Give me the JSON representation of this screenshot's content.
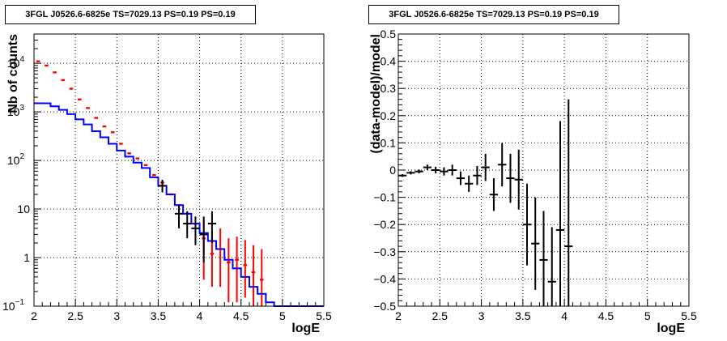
{
  "colors": {
    "data": "#ff0000",
    "model": "#0000ff",
    "residual": "#000000",
    "frame": "#000000",
    "grid": "#000000"
  },
  "chart_data": [
    {
      "type": "line",
      "title": "3FGL J0526.6-6825e TS=7029.13 PS=0.19 PS=0.19",
      "xlabel": "logE",
      "ylabel": "Nb of counts",
      "xlim": [
        2,
        5.5
      ],
      "ylim": [
        0.1,
        40000
      ],
      "yscale": "log",
      "grid": true,
      "xticks": [
        "2",
        "2.5",
        "3",
        "3.5",
        "4",
        "4.5",
        "5",
        "5.5"
      ],
      "yticks": [
        {
          "value": 0.1,
          "base": "10",
          "exp": "−1"
        },
        {
          "value": 1,
          "base": "1",
          "exp": ""
        },
        {
          "value": 10,
          "base": "10",
          "exp": ""
        },
        {
          "value": 100,
          "base": "10",
          "exp": "2"
        },
        {
          "value": 1000,
          "base": "10",
          "exp": "3"
        },
        {
          "value": 10000,
          "base": "10",
          "exp": "4"
        }
      ],
      "bin_width": 0.1,
      "x": [
        2.05,
        2.15,
        2.25,
        2.35,
        2.45,
        2.55,
        2.65,
        2.75,
        2.85,
        2.95,
        3.05,
        3.15,
        3.25,
        3.35,
        3.45,
        3.55,
        3.65,
        3.75,
        3.85,
        3.95,
        4.05,
        4.15,
        4.25,
        4.35,
        4.45,
        4.55,
        4.65,
        4.75,
        4.85,
        4.95,
        5.05,
        5.15,
        5.25,
        5.35,
        5.45
      ],
      "series": [
        {
          "kind": "data",
          "values": [
            11000,
            9000,
            6500,
            4500,
            3000,
            1800,
            1200,
            750,
            500,
            380,
            220,
            140,
            110,
            80,
            50,
            35,
            20,
            12,
            8,
            5,
            2.5,
            1.2,
            1.5,
            0.8,
            0.9,
            0.7,
            0.5,
            0.35,
            null,
            null,
            null,
            null,
            null,
            null,
            null
          ],
          "err_low": [
            null,
            null,
            null,
            null,
            null,
            null,
            null,
            null,
            null,
            null,
            null,
            null,
            null,
            null,
            null,
            null,
            null,
            null,
            null,
            null,
            0.35,
            0.25,
            0.25,
            0.12,
            0.12,
            0.15,
            0.1,
            0.1,
            null,
            null,
            null,
            null,
            null,
            null,
            null
          ],
          "err_high": [
            null,
            null,
            null,
            null,
            null,
            null,
            null,
            null,
            null,
            null,
            null,
            null,
            null,
            null,
            null,
            null,
            null,
            null,
            null,
            null,
            6,
            3.5,
            4,
            2.5,
            2.7,
            2.3,
            1.8,
            1.5,
            null,
            null,
            null,
            null,
            null,
            null,
            null
          ]
        },
        {
          "kind": "model",
          "values": [
            1500,
            1500,
            1300,
            1100,
            900,
            700,
            550,
            400,
            300,
            220,
            160,
            120,
            90,
            70,
            45,
            30,
            20,
            12,
            8,
            5,
            3.2,
            2.2,
            1.5,
            0.9,
            0.6,
            0.4,
            0.25,
            0.18,
            0.12,
            0.1,
            0.1,
            0.1,
            0.1,
            0.1,
            0.1
          ]
        },
        {
          "kind": "observed",
          "x": [
            3.55,
            3.75,
            3.85,
            3.95,
            4.05,
            4.15
          ],
          "values": [
            30,
            8,
            5,
            4,
            3,
            5
          ],
          "err_low": [
            22,
            4,
            2.5,
            1.8,
            0.8,
            2
          ],
          "err_high": [
            40,
            12,
            9,
            7,
            7,
            9
          ]
        }
      ]
    },
    {
      "type": "scatter",
      "title": "3FGL J0526.6-6825e TS=7029.13 PS=0.19 PS=0.19",
      "xlabel": "logE",
      "ylabel": "(data-model)/model",
      "xlim": [
        2,
        5.5
      ],
      "ylim": [
        -0.5,
        0.5
      ],
      "grid": true,
      "xticks": [
        "2",
        "2.5",
        "3",
        "3.5",
        "4",
        "4.5",
        "5",
        "5.5"
      ],
      "yticks": [
        "−0.5",
        "−0.4",
        "−0.3",
        "−0.2",
        "−0.1",
        "0",
        "0.1",
        "0.2",
        "0.3",
        "0.4",
        "0.5"
      ],
      "bin_width": 0.1,
      "points": [
        {
          "x": 2.05,
          "y": -0.02,
          "err": 0.005
        },
        {
          "x": 2.15,
          "y": -0.01,
          "err": 0.006
        },
        {
          "x": 2.25,
          "y": -0.005,
          "err": 0.007
        },
        {
          "x": 2.35,
          "y": 0.01,
          "err": 0.01
        },
        {
          "x": 2.45,
          "y": 0.0,
          "err": 0.012
        },
        {
          "x": 2.55,
          "y": -0.005,
          "err": 0.015
        },
        {
          "x": 2.65,
          "y": 0.0,
          "err": 0.02
        },
        {
          "x": 2.75,
          "y": -0.03,
          "err": 0.025
        },
        {
          "x": 2.85,
          "y": -0.05,
          "err": 0.03
        },
        {
          "x": 2.95,
          "y": -0.02,
          "err": 0.035
        },
        {
          "x": 3.05,
          "y": 0.01,
          "err": 0.05
        },
        {
          "x": 3.15,
          "y": -0.09,
          "err": 0.06
        },
        {
          "x": 3.25,
          "y": 0.02,
          "err": 0.08
        },
        {
          "x": 3.35,
          "y": -0.03,
          "err": 0.09
        },
        {
          "x": 3.45,
          "y": -0.035,
          "err": 0.11
        },
        {
          "x": 3.55,
          "y": -0.2,
          "err": 0.15
        },
        {
          "x": 3.65,
          "y": -0.27,
          "err": 0.17
        },
        {
          "x": 3.75,
          "y": -0.33,
          "err": 0.18
        },
        {
          "x": 3.85,
          "y": -0.41,
          "err": 0.2
        },
        {
          "x": 3.95,
          "y": -0.22,
          "err": 0.4
        },
        {
          "x": 4.05,
          "y": -0.28,
          "err": 0.54
        }
      ]
    }
  ]
}
